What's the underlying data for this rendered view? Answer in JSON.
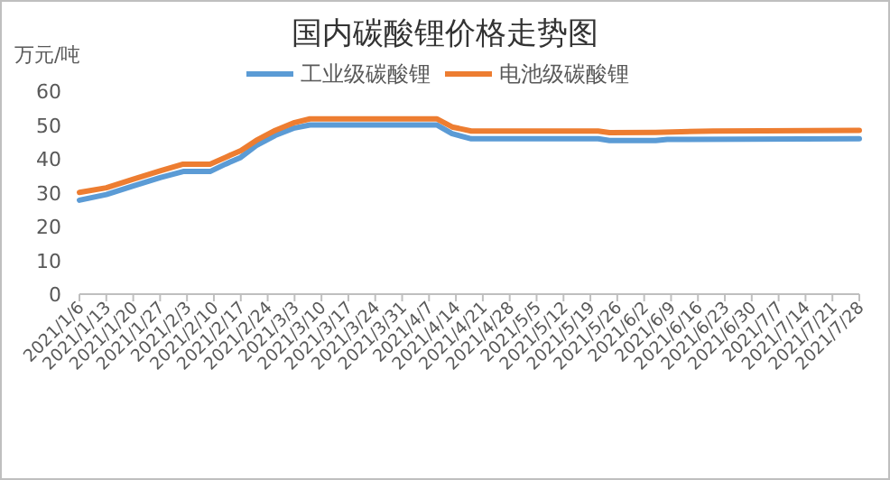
{
  "chart_data": {
    "type": "line",
    "title": "国内碳酸锂价格走势图",
    "ylabel": "万元/吨",
    "legend": "top",
    "grid": false,
    "marker": "none",
    "line_style": "solid",
    "xlim": [
      "2021-01-06",
      "2021-07-28"
    ],
    "ylim": [
      0,
      60
    ],
    "yticks": [
      0,
      10,
      20,
      30,
      40,
      50,
      60
    ],
    "xticks": [
      {
        "value": "2021-01-06",
        "label": "2021/1/6"
      },
      {
        "value": "2021-01-13",
        "label": "2021/1/13"
      },
      {
        "value": "2021-01-20",
        "label": "2021/1/20"
      },
      {
        "value": "2021-01-27",
        "label": "2021/1/27"
      },
      {
        "value": "2021-02-03",
        "label": "2021/2/3"
      },
      {
        "value": "2021-02-10",
        "label": "2021/2/10"
      },
      {
        "value": "2021-02-17",
        "label": "2021/2/17"
      },
      {
        "value": "2021-02-24",
        "label": "2021/2/24"
      },
      {
        "value": "2021-03-03",
        "label": "2021/3/3"
      },
      {
        "value": "2021-03-10",
        "label": "2021/3/10"
      },
      {
        "value": "2021-03-17",
        "label": "2021/3/17"
      },
      {
        "value": "2021-03-24",
        "label": "2021/3/24"
      },
      {
        "value": "2021-03-31",
        "label": "2021/3/31"
      },
      {
        "value": "2021-04-07",
        "label": "2021/4/7"
      },
      {
        "value": "2021-04-14",
        "label": "2021/4/14"
      },
      {
        "value": "2021-04-21",
        "label": "2021/4/21"
      },
      {
        "value": "2021-04-28",
        "label": "2021/4/28"
      },
      {
        "value": "2021-05-05",
        "label": "2021/5/5"
      },
      {
        "value": "2021-05-12",
        "label": "2021/5/12"
      },
      {
        "value": "2021-05-19",
        "label": "2021/5/19"
      },
      {
        "value": "2021-05-26",
        "label": "2021/5/26"
      },
      {
        "value": "2021-06-02",
        "label": "2021/6/2"
      },
      {
        "value": "2021-06-09",
        "label": "2021/6/9"
      },
      {
        "value": "2021-06-16",
        "label": "2021/6/16"
      },
      {
        "value": "2021-06-23",
        "label": "2021/6/23"
      },
      {
        "value": "2021-06-30",
        "label": "2021/6/30"
      },
      {
        "value": "2021-07-07",
        "label": "2021/7/7"
      },
      {
        "value": "2021-07-14",
        "label": "2021/7/14"
      },
      {
        "value": "2021-07-21",
        "label": "2021/7/21"
      },
      {
        "value": "2021-07-28",
        "label": "2021/7/28"
      }
    ],
    "series": [
      {
        "name": "工业级碳酸锂",
        "color": "#5b9bd5",
        "x": [
          "2021-01-06",
          "2021-01-13",
          "2021-01-20",
          "2021-01-27",
          "2021-02-02",
          "2021-02-09",
          "2021-02-13",
          "2021-02-17",
          "2021-02-21",
          "2021-02-26",
          "2021-03-03",
          "2021-03-07",
          "2021-04-09",
          "2021-04-13",
          "2021-04-18",
          "2021-05-21",
          "2021-05-24",
          "2021-06-05",
          "2021-06-08",
          "2021-07-28"
        ],
        "values": [
          27.8,
          29.5,
          32,
          34.5,
          36.3,
          36.3,
          38.5,
          40.5,
          44,
          47,
          49.2,
          50.1,
          50.1,
          47.5,
          46,
          46,
          45.5,
          45.5,
          45.8,
          46
        ]
      },
      {
        "name": "电池级碳酸锂",
        "color": "#ed7d31",
        "x": [
          "2021-01-06",
          "2021-01-13",
          "2021-01-20",
          "2021-01-27",
          "2021-02-02",
          "2021-02-09",
          "2021-02-13",
          "2021-02-17",
          "2021-02-21",
          "2021-02-26",
          "2021-03-03",
          "2021-03-07",
          "2021-04-09",
          "2021-04-13",
          "2021-04-18",
          "2021-05-21",
          "2021-05-24",
          "2021-06-05",
          "2021-06-20",
          "2021-07-28"
        ],
        "values": [
          30.1,
          31.5,
          34,
          36.5,
          38.5,
          38.5,
          40.5,
          42.5,
          45.5,
          48.5,
          50.8,
          51.9,
          51.9,
          49.5,
          48.3,
          48.3,
          47.8,
          47.9,
          48.3,
          48.5
        ]
      }
    ]
  }
}
